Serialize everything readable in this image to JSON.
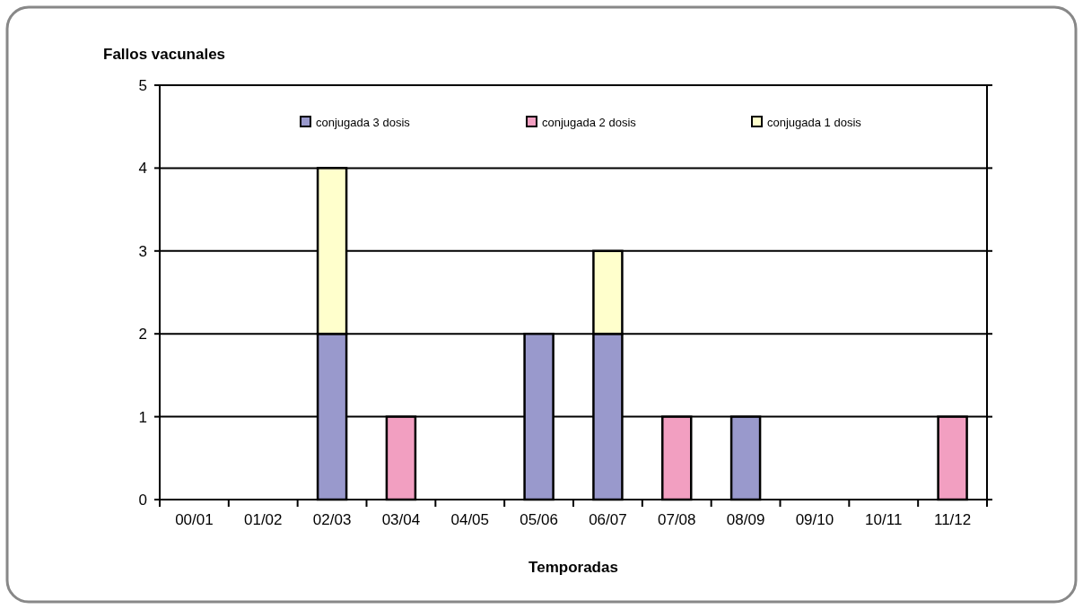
{
  "chart_data": {
    "type": "bar",
    "stacked": true,
    "xlabel": "Temporadas",
    "ylabel": "Fallos vacunales",
    "categories": [
      "00/01",
      "01/02",
      "02/03",
      "03/04",
      "04/05",
      "05/06",
      "06/07",
      "07/08",
      "08/09",
      "09/10",
      "10/11",
      "11/12"
    ],
    "series": [
      {
        "name": "conjugada 3 dosis",
        "color": "#9999cc",
        "values": [
          0,
          0,
          2,
          0,
          0,
          2,
          2,
          0,
          1,
          0,
          0,
          0
        ]
      },
      {
        "name": "conjugada 2 dosis",
        "color": "#f29fc1",
        "values": [
          0,
          0,
          0,
          1,
          0,
          0,
          0,
          1,
          0,
          0,
          0,
          1
        ]
      },
      {
        "name": "conjugada 1 dosis",
        "color": "#ffffcc",
        "values": [
          0,
          0,
          2,
          0,
          0,
          0,
          1,
          0,
          0,
          0,
          0,
          0
        ]
      }
    ],
    "ylim": [
      0,
      5
    ],
    "yticks": [
      0,
      1,
      2,
      3,
      4,
      5
    ],
    "grid": "y",
    "legend": "top"
  }
}
